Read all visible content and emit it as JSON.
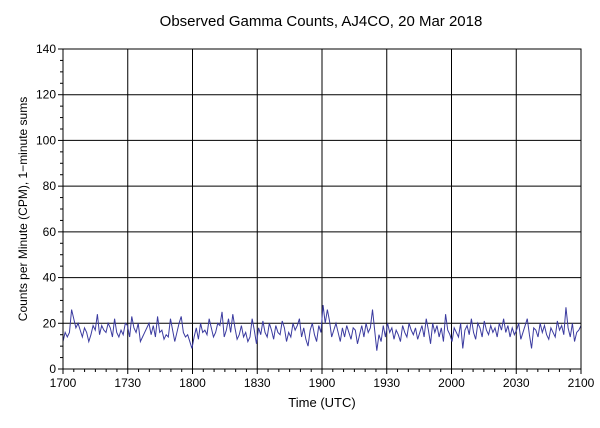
{
  "chart_data": {
    "type": "line",
    "title": "Observed Gamma Counts, AJ4CO, 20 Mar 2018",
    "xlabel": "Time (UTC)",
    "ylabel": "Counts per Minute (CPM), 1−minute sums",
    "x_tick_labels": [
      "1700",
      "1730",
      "1800",
      "1830",
      "1900",
      "1930",
      "2000",
      "2030",
      "2100"
    ],
    "y_tick_labels": [
      "0",
      "20",
      "40",
      "60",
      "80",
      "100",
      "120",
      "140"
    ],
    "xlim_minutes": [
      0,
      240
    ],
    "ylim": [
      0,
      140
    ],
    "grid": true,
    "colors": {
      "series": "#3b3ba0",
      "grid": "#000000"
    },
    "series": [
      {
        "values": [
          12,
          16,
          14,
          16,
          26,
          22,
          18,
          20,
          17,
          14,
          18,
          16,
          12,
          15,
          19,
          17,
          24,
          15,
          19,
          17,
          16,
          20,
          18,
          14,
          22,
          16,
          14,
          17,
          15,
          20,
          19,
          14,
          23,
          18,
          16,
          20,
          12,
          14,
          16,
          18,
          20,
          15,
          19,
          14,
          23,
          16,
          17,
          13,
          15,
          14,
          22,
          17,
          12,
          16,
          20,
          23,
          16,
          14,
          15,
          12,
          9,
          14,
          18,
          13,
          20,
          16,
          17,
          15,
          22,
          18,
          14,
          16,
          20,
          19,
          25,
          14,
          17,
          22,
          16,
          24,
          18,
          13,
          15,
          19,
          14,
          16,
          12,
          14,
          22,
          17,
          11,
          18,
          15,
          21,
          16,
          14,
          20,
          17,
          13,
          19,
          16,
          15,
          21,
          18,
          12,
          16,
          14,
          20,
          17,
          19,
          22,
          14,
          18,
          13,
          10,
          17,
          20,
          15,
          12,
          19,
          16,
          28,
          20,
          26,
          21,
          14,
          17,
          20,
          16,
          12,
          18,
          14,
          19,
          16,
          13,
          18,
          17,
          11,
          15,
          19,
          14,
          20,
          16,
          18,
          26,
          17,
          8,
          15,
          12,
          19,
          14,
          20,
          16,
          18,
          13,
          17,
          15,
          12,
          19,
          16,
          14,
          20,
          17,
          15,
          18,
          13,
          16,
          19,
          14,
          22,
          17,
          11,
          20,
          16,
          19,
          14,
          18,
          12,
          24,
          17,
          15,
          12,
          18,
          16,
          14,
          20,
          9,
          17,
          19,
          15,
          22,
          16,
          13,
          20,
          18,
          14,
          21,
          17,
          15,
          19,
          16,
          18,
          14,
          20,
          17,
          22,
          16,
          19,
          14,
          18,
          15,
          17,
          20,
          13,
          16,
          19,
          22,
          15,
          9,
          18,
          17,
          14,
          20,
          16,
          19,
          15,
          13,
          18,
          16,
          14,
          21,
          17,
          19,
          15,
          27,
          18,
          14,
          20,
          12,
          16,
          17,
          19
        ]
      }
    ]
  }
}
